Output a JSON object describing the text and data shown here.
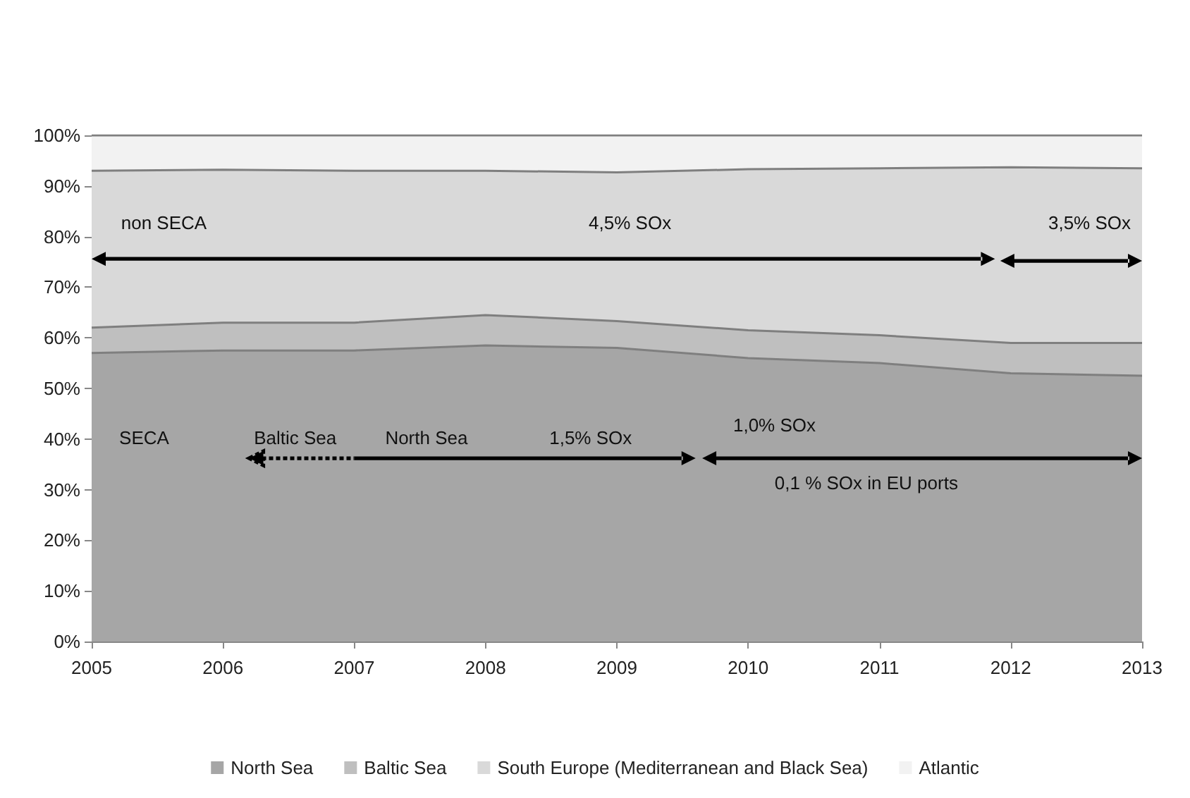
{
  "chart_data": {
    "type": "area",
    "stacked": true,
    "categories": [
      "2005",
      "2006",
      "2007",
      "2008",
      "2009",
      "2010",
      "2011",
      "2012",
      "2013"
    ],
    "ylim": [
      0,
      100
    ],
    "yticks": [
      {
        "value": 0,
        "label": "0%"
      },
      {
        "value": 10,
        "label": "10%"
      },
      {
        "value": 20,
        "label": "20%"
      },
      {
        "value": 30,
        "label": "30%"
      },
      {
        "value": 40,
        "label": "40%"
      },
      {
        "value": 50,
        "label": "50%"
      },
      {
        "value": 60,
        "label": "60%"
      },
      {
        "value": 70,
        "label": "70%"
      },
      {
        "value": 80,
        "label": "80%"
      },
      {
        "value": 90,
        "label": "90%"
      },
      {
        "value": 100,
        "label": "100%"
      }
    ],
    "series": [
      {
        "name": "North Sea",
        "color": "#a6a6a6",
        "values": [
          57,
          57.5,
          57.5,
          58.5,
          58,
          56,
          55,
          53,
          52.5
        ]
      },
      {
        "name": "Baltic Sea",
        "color": "#bfbfbf",
        "values": [
          5,
          5.5,
          5.5,
          6,
          5.3,
          5.5,
          5.5,
          6,
          6.5
        ]
      },
      {
        "name": "South Europe (Mediterranean and Black Sea)",
        "color": "#d9d9d9",
        "values": [
          31,
          30.2,
          30,
          28.5,
          29.4,
          31.8,
          33,
          34.7,
          34.5
        ]
      },
      {
        "name": "Atlantic",
        "color": "#f2f2f2",
        "values": [
          7,
          6.8,
          7,
          7,
          7.3,
          6.7,
          6.5,
          6.3,
          6.5
        ]
      }
    ],
    "annotations": [
      "non SECA",
      "4,5% SOx",
      "3,5% SOx",
      "SECA",
      "Baltic Sea",
      "North Sea",
      "1,5% SOx",
      "1,0% SOx",
      "0,1 % SOx in EU ports"
    ],
    "grid": false,
    "legend": "bottom"
  }
}
